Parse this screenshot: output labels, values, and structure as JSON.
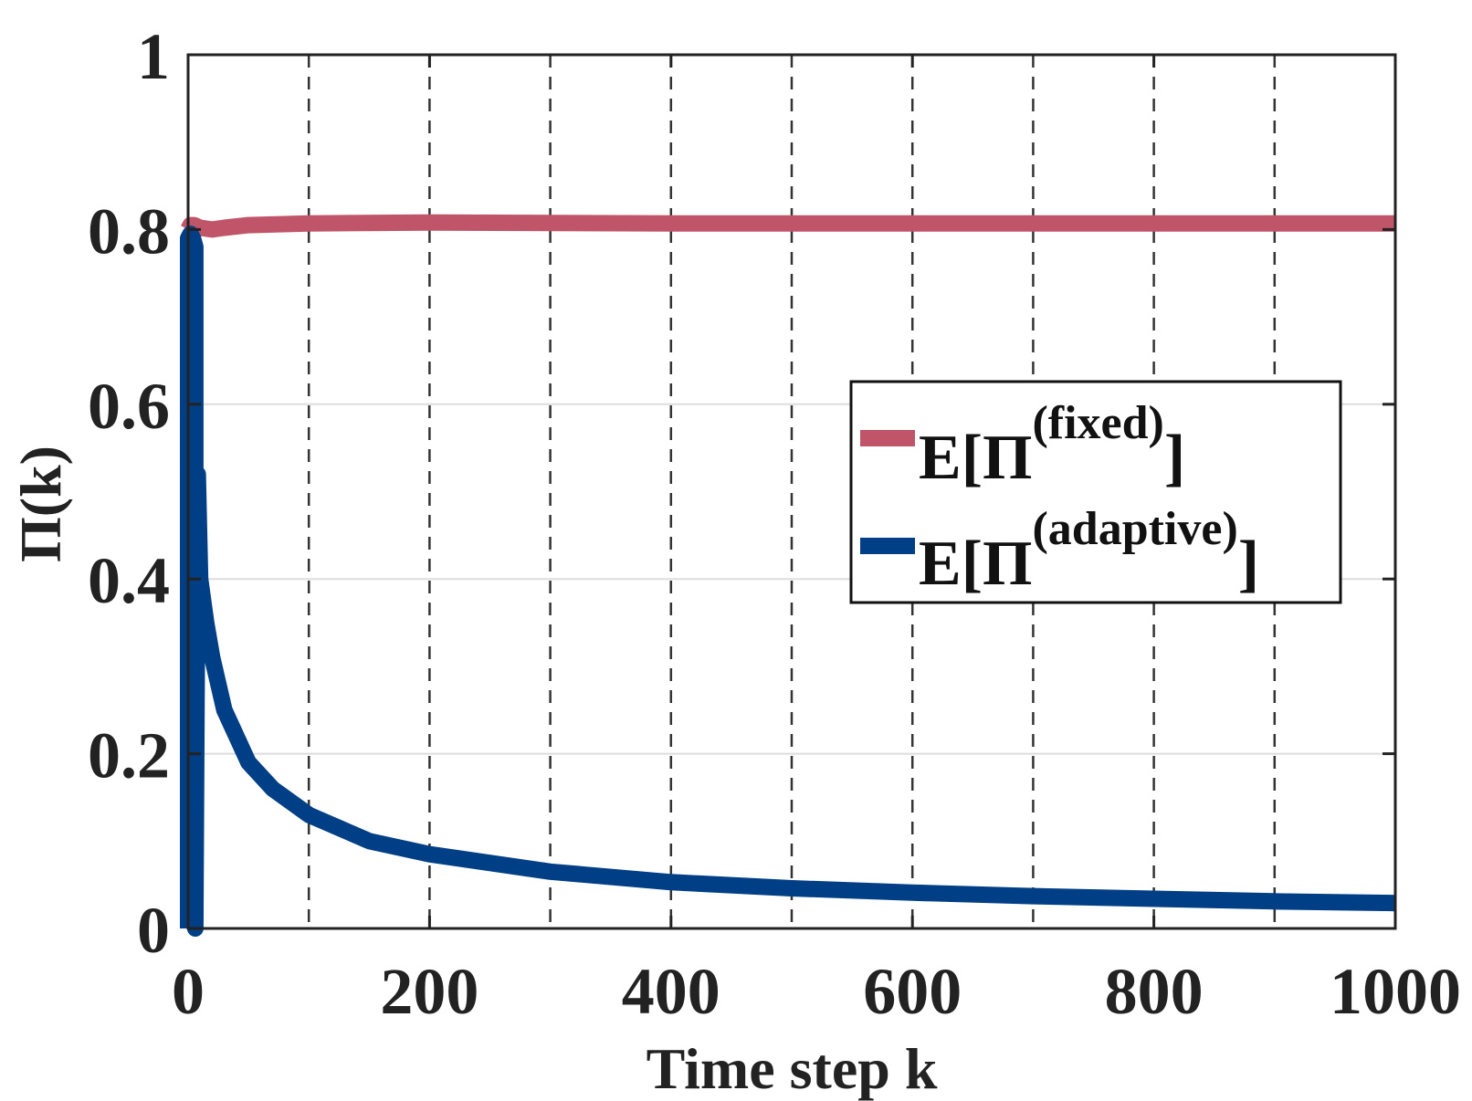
{
  "chart_data": {
    "type": "line",
    "title": "",
    "xlabel": "Time step k",
    "ylabel": "Π(k)",
    "xlim": [
      0,
      1000
    ],
    "ylim": [
      0,
      1
    ],
    "xticks": [
      0,
      200,
      400,
      600,
      800,
      1000
    ],
    "xtick_labels": [
      "0",
      "200",
      "400",
      "600",
      "800",
      "1000"
    ],
    "yticks": [
      0,
      0.2,
      0.4,
      0.6,
      0.8,
      1
    ],
    "ytick_labels": [
      "0",
      "0.2",
      "0.4",
      "0.6",
      "0.8",
      "1"
    ],
    "x_minor_dashed_lines": [
      100,
      200,
      300,
      400,
      500,
      600,
      700,
      800,
      900
    ],
    "grid": true,
    "legend_position": "center-right",
    "series": [
      {
        "name": "fixed",
        "legend_base": "E[Π",
        "legend_sup": "(fixed)",
        "legend_close": "]",
        "color": "#c05468",
        "x": [
          0,
          2,
          5,
          10,
          20,
          30,
          50,
          100,
          200,
          400,
          600,
          800,
          1000
        ],
        "y": [
          0.8,
          0.805,
          0.805,
          0.802,
          0.8,
          0.802,
          0.805,
          0.807,
          0.808,
          0.807,
          0.807,
          0.807,
          0.807
        ]
      },
      {
        "name": "adaptive",
        "legend_base": "E[Π",
        "legend_sup": "(adaptive)",
        "legend_close": "]",
        "color": "#003e85",
        "x": [
          0,
          0,
          2,
          4,
          6,
          6,
          8,
          10,
          15,
          20,
          30,
          50,
          70,
          100,
          150,
          200,
          300,
          400,
          500,
          600,
          700,
          800,
          900,
          1000
        ],
        "y": [
          0,
          0.79,
          0.795,
          0.79,
          0.78,
          0,
          0.52,
          0.4,
          0.35,
          0.31,
          0.25,
          0.19,
          0.16,
          0.13,
          0.1,
          0.085,
          0.065,
          0.053,
          0.046,
          0.041,
          0.037,
          0.034,
          0.031,
          0.029
        ]
      }
    ]
  }
}
